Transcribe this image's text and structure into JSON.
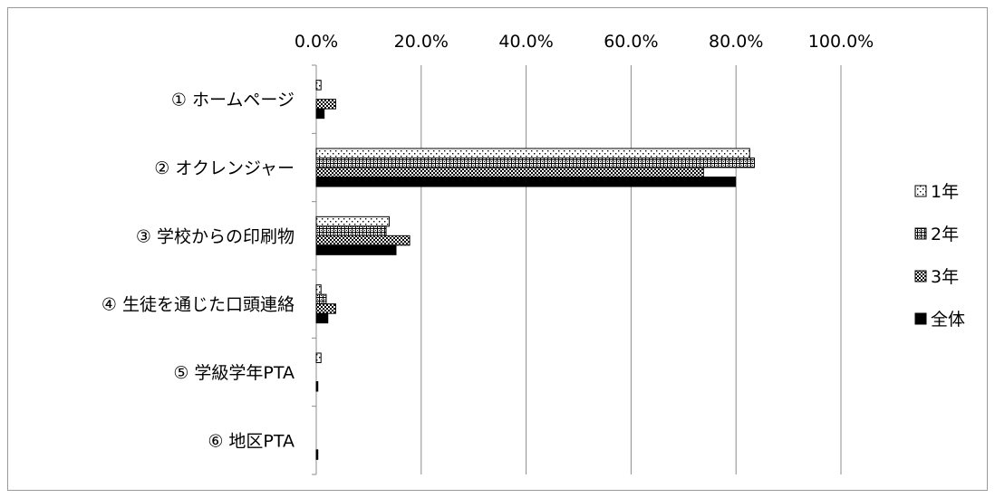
{
  "chart_data": {
    "type": "bar",
    "orientation": "horizontal",
    "categories": [
      "① ホームページ",
      "② オクレンジャー",
      "③ 学校からの印刷物",
      "④ 生徒を通じた口頭連絡",
      "⑤ 学級学年PTA",
      "⑥ 地区PTA"
    ],
    "series": [
      {
        "name": "1年",
        "pattern": "dots",
        "values": [
          0.9,
          82.6,
          13.9,
          0.9,
          0.9,
          0
        ]
      },
      {
        "name": "2年",
        "pattern": "grid",
        "values": [
          0,
          83.5,
          13.3,
          1.9,
          0,
          0
        ]
      },
      {
        "name": "3年",
        "pattern": "checker",
        "values": [
          3.7,
          73.8,
          17.8,
          3.7,
          0,
          0
        ]
      },
      {
        "name": "全体",
        "pattern": "solid",
        "values": [
          1.5,
          79.9,
          15.2,
          2.2,
          0.3,
          0.3
        ]
      }
    ],
    "xlim": [
      0,
      100
    ],
    "x_ticks": [
      "0.0%",
      "20.0%",
      "40.0%",
      "60.0%",
      "80.0%",
      "100.0%"
    ],
    "axis_position": "top",
    "grid": true,
    "legend_position": "right",
    "colors": {
      "frame": "#9a9a9a",
      "grid": "#8c8c8c",
      "bar_fill": "#000000"
    }
  }
}
